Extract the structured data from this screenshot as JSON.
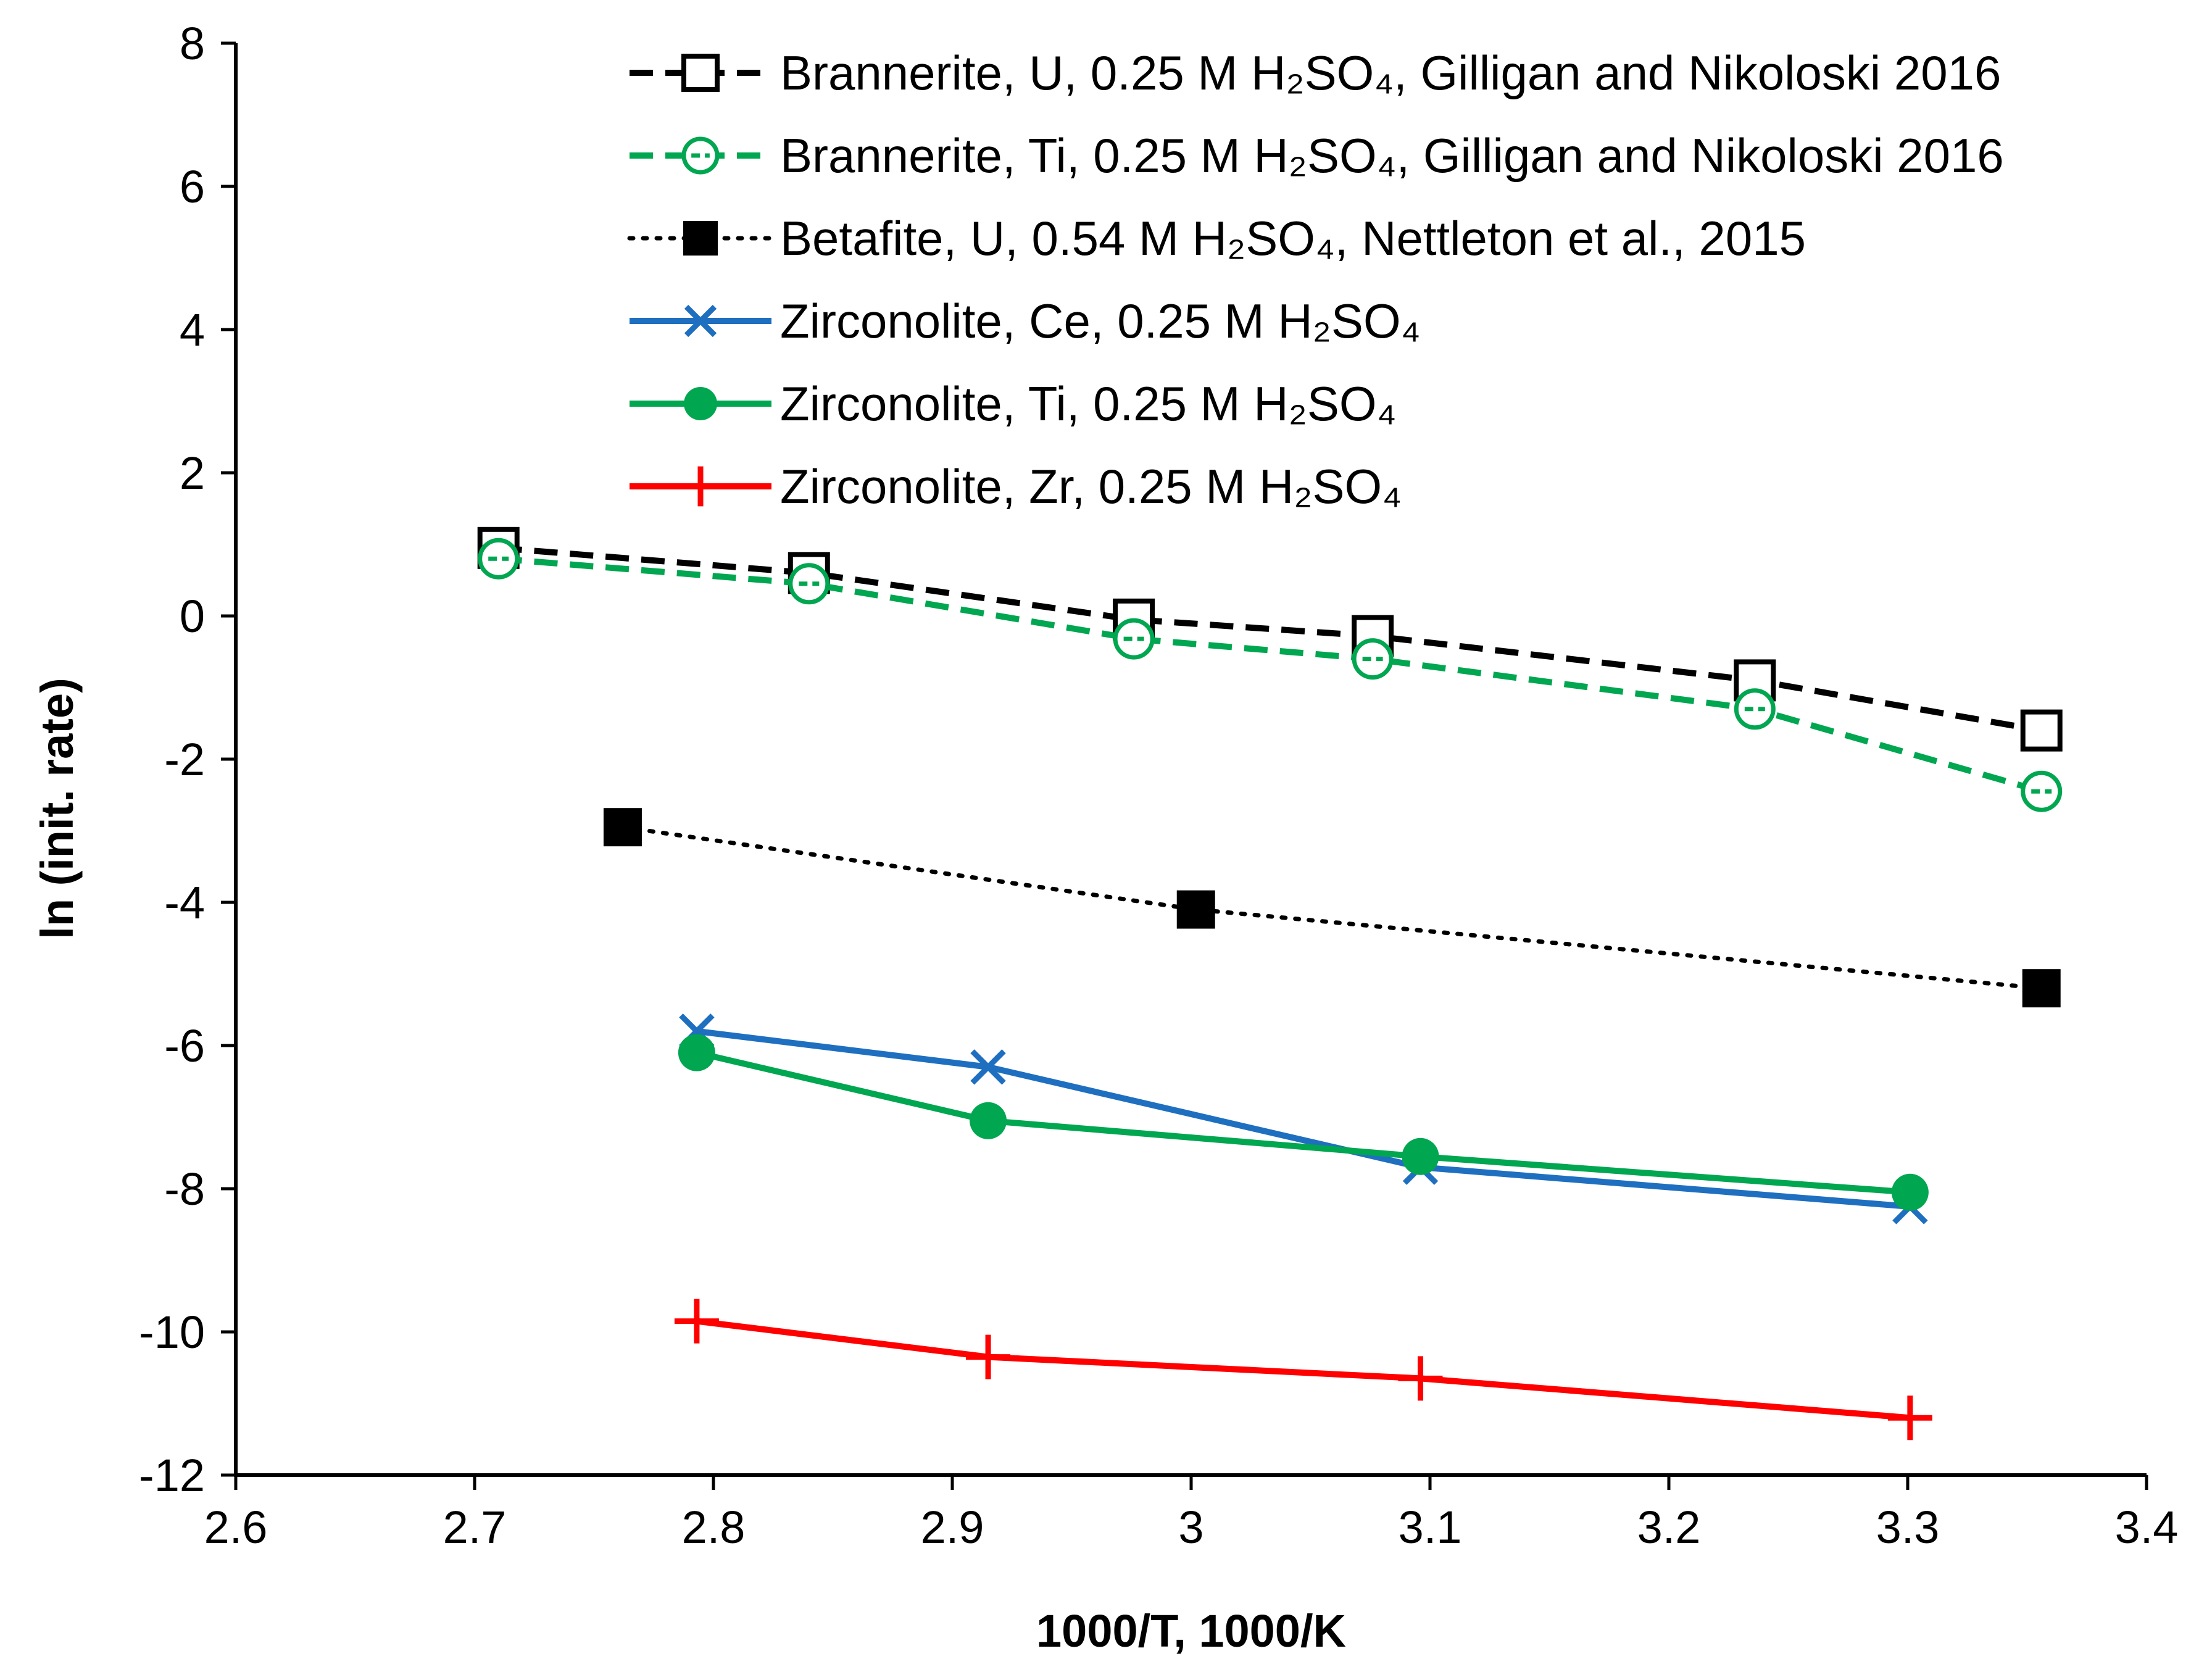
{
  "chart_data": {
    "type": "line",
    "xlabel": "1000/T, 1000/K",
    "ylabel": "ln (init. rate)",
    "xlim": [
      2.6,
      3.4
    ],
    "ylim": [
      -12,
      8
    ],
    "x_ticks": [
      2.6,
      2.7,
      2.8,
      2.9,
      3,
      3.1,
      3.2,
      3.3,
      3.4
    ],
    "y_ticks": [
      8,
      6,
      4,
      2,
      0,
      -2,
      -4,
      -6,
      -8,
      -10,
      -12
    ],
    "x_tick_labels": [
      "2.6",
      "2.7",
      "2.8",
      "2.9",
      "3",
      "3.1",
      "3.2",
      "3.3",
      "3.4"
    ],
    "y_tick_labels": [
      "8",
      "6",
      "4",
      "2",
      "0",
      "-2",
      "-4",
      "-6",
      "-8",
      "-10",
      "-12"
    ],
    "grid": false,
    "legend_position": "top-right",
    "series": [
      {
        "name": "Brannerite, U, 0.25 M H₂SO₄, Gilligan and Nikoloski 2016",
        "color": "#000000",
        "line_style": "dashed",
        "marker": "open-square",
        "points": [
          [
            2.71,
            0.95
          ],
          [
            2.84,
            0.6
          ],
          [
            2.976,
            -0.05
          ],
          [
            3.076,
            -0.28
          ],
          [
            3.236,
            -0.9
          ],
          [
            3.356,
            -1.6
          ]
        ]
      },
      {
        "name": "Brannerite, Ti, 0.25 M H₂SO₄, Gilligan and Nikoloski 2016",
        "color": "#00a650",
        "line_style": "dashed",
        "marker": "open-circle",
        "points": [
          [
            2.71,
            0.8
          ],
          [
            2.84,
            0.45
          ],
          [
            2.976,
            -0.32
          ],
          [
            3.076,
            -0.6
          ],
          [
            3.236,
            -1.3
          ],
          [
            3.356,
            -2.45
          ]
        ]
      },
      {
        "name": "Betafite, U, 0.54 M H₂SO₄, Nettleton et al., 2015",
        "color": "#000000",
        "line_style": "dotted",
        "marker": "filled-square",
        "points": [
          [
            2.762,
            -2.95
          ],
          [
            3.002,
            -4.1
          ],
          [
            3.356,
            -5.2
          ]
        ]
      },
      {
        "name": "Zirconolite, Ce, 0.25 M H₂SO₄",
        "color": "#1f6fc0",
        "line_style": "solid",
        "marker": "x",
        "points": [
          [
            2.793,
            -5.8
          ],
          [
            2.915,
            -6.3
          ],
          [
            3.096,
            -7.7
          ],
          [
            3.301,
            -8.25
          ]
        ]
      },
      {
        "name": "Zirconolite, Ti, 0.25 M H₂SO₄",
        "color": "#00a650",
        "line_style": "solid",
        "marker": "filled-circle",
        "points": [
          [
            2.793,
            -6.1
          ],
          [
            2.915,
            -7.05
          ],
          [
            3.096,
            -7.55
          ],
          [
            3.301,
            -8.05
          ]
        ]
      },
      {
        "name": "Zirconolite, Zr, 0.25 M H₂SO₄",
        "color": "#ff0000",
        "line_style": "solid",
        "marker": "plus",
        "points": [
          [
            2.793,
            -9.85
          ],
          [
            2.915,
            -10.35
          ],
          [
            3.096,
            -10.65
          ],
          [
            3.301,
            -11.2
          ]
        ]
      }
    ]
  }
}
